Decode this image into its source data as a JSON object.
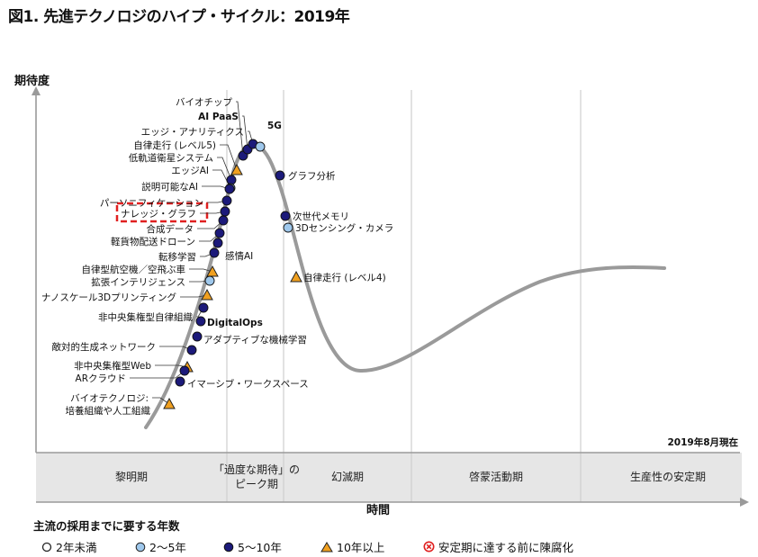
{
  "title": "図1. 先進テクノロジのハイプ・サイクル：2019年",
  "chart_data": {
    "type": "hype-cycle",
    "ylabel": "期待度",
    "xlabel": "時間",
    "date_note": "2019年8月現在",
    "phases": [
      {
        "key": "trigger",
        "lines": [
          "黎明期"
        ]
      },
      {
        "key": "peak",
        "lines": [
          "「過度な期待」の",
          "ピーク期"
        ]
      },
      {
        "key": "trough",
        "lines": [
          "幻滅期"
        ]
      },
      {
        "key": "slope",
        "lines": [
          "啓蒙活動期"
        ]
      },
      {
        "key": "plateau",
        "lines": [
          "生産性の安定期"
        ]
      }
    ],
    "points": [
      {
        "label": "バイオチップ",
        "cat": "5-10",
        "side": "left"
      },
      {
        "label": "AI PaaS",
        "cat": "5-10",
        "side": "left",
        "bold": true
      },
      {
        "label": "エッジ・アナリティクス",
        "cat": "5-10",
        "side": "left"
      },
      {
        "label": "自律走行 (レベル5)",
        "cat": "10+",
        "side": "left"
      },
      {
        "label": "低軌道衛星システム",
        "cat": "5-10",
        "side": "left"
      },
      {
        "label": "エッジAI",
        "cat": "2-5",
        "side": "left"
      },
      {
        "label": "説明可能なAI",
        "cat": "5-10",
        "side": "left"
      },
      {
        "label": "パーソニフィケーション",
        "cat": "5-10",
        "side": "left"
      },
      {
        "label": "ナレッジ・グラフ",
        "cat": "5-10",
        "side": "left",
        "highlight": true
      },
      {
        "label": "合成データ",
        "cat": "5-10",
        "side": "left"
      },
      {
        "label": "軽貨物配送ドローン",
        "cat": "5-10",
        "side": "left"
      },
      {
        "label": "感情AI",
        "cat": "5-10",
        "side": "right"
      },
      {
        "label": "転移学習",
        "cat": "5-10",
        "side": "left"
      },
      {
        "label": "自律型航空機／空飛ぶ車",
        "cat": "10+",
        "side": "left"
      },
      {
        "label": "拡張インテリジェンス",
        "cat": "2-5",
        "side": "left"
      },
      {
        "label": "ナノスケール3Dプリンティング",
        "cat": "10+",
        "side": "left"
      },
      {
        "label": "非中央集権型自律組織",
        "cat": "5-10",
        "side": "left"
      },
      {
        "label": "DigitalOps",
        "cat": "5-10",
        "side": "right",
        "bold": true
      },
      {
        "label": "アダプティブな機械学習",
        "cat": "5-10",
        "side": "right"
      },
      {
        "label": "敵対的生成ネットワーク",
        "cat": "5-10",
        "side": "left"
      },
      {
        "label": "非中央集権型Web",
        "cat": "10+",
        "side": "left"
      },
      {
        "label": "ARクラウド",
        "cat": "5-10",
        "side": "left"
      },
      {
        "label": "イマーシブ・ワークスペース",
        "cat": "5-10",
        "side": "right"
      },
      {
        "label": "バイオテクノロジ:",
        "label2": "培養組織や人工組織",
        "cat": "10+",
        "side": "left"
      },
      {
        "label": "5G",
        "cat": "2-5",
        "side": "right",
        "bold": true
      },
      {
        "label": "グラフ分析",
        "cat": "5-10",
        "side": "right"
      },
      {
        "label": "次世代メモリ",
        "cat": "5-10",
        "side": "right"
      },
      {
        "label": "3Dセンシング・カメラ",
        "cat": "2-5",
        "side": "right"
      },
      {
        "label": "自律走行 (レベル4)",
        "cat": "10+",
        "side": "right"
      }
    ]
  },
  "legend": {
    "title": "主流の採用までに要する年数",
    "items": [
      {
        "label": "2年未満",
        "marker": "open-circle"
      },
      {
        "label": "2～5年",
        "marker": "light-circle"
      },
      {
        "label": "5～10年",
        "marker": "dark-circle"
      },
      {
        "label": "10年以上",
        "marker": "triangle"
      },
      {
        "label": "安定期に達する前に陳腐化",
        "marker": "x-circle"
      }
    ]
  },
  "colors": {
    "dark": "#1c1a7a",
    "light": "#9fc8ec",
    "triangle": "#f0a020",
    "obsolete": "#e02020",
    "curve": "#9a9a9a",
    "phase_bg": "#e6e6e6",
    "highlight": "#e02020"
  }
}
